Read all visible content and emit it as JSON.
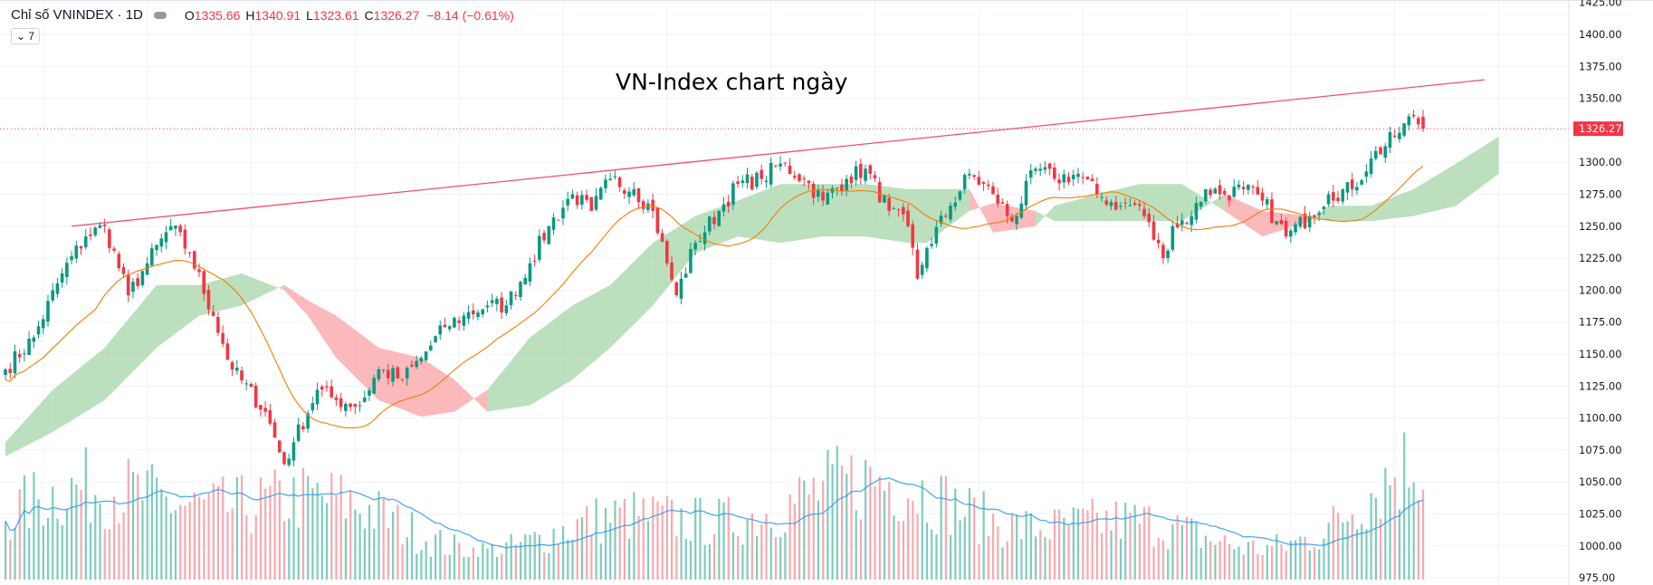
{
  "header": {
    "symbol": "Chỉ số VNINDEX · 1D",
    "open_label": "O",
    "open": "1335.66",
    "high_label": "H",
    "high": "1340.91",
    "low_label": "L",
    "low": "1323.61",
    "close_label": "C",
    "close": "1326.27",
    "change": "−8.14 (−0.61%)",
    "indicator_toggle": "⌄ 7"
  },
  "chart_data": {
    "type": "candlestick",
    "title": "VN-Index chart ngày",
    "ylim": [
      975,
      1425
    ],
    "y_ticks": [
      "1425.00",
      "1400.00",
      "1375.00",
      "1350.00",
      "1300.00",
      "1275.00",
      "1250.00",
      "1225.00",
      "1200.00",
      "1175.00",
      "1150.00",
      "1125.00",
      "1100.00",
      "1075.00",
      "1050.00",
      "1025.00",
      "1000.00",
      "975.00"
    ],
    "last_price_label": "1326.27",
    "last_price": 1326.27,
    "last_candle": {
      "open": 1335.66,
      "high": 1340.91,
      "low": 1323.61,
      "close": 1326.27
    },
    "close_trace_bar_price": [
      [
        0,
        1138
      ],
      [
        6,
        1163
      ],
      [
        12,
        1213
      ],
      [
        17,
        1242
      ],
      [
        21,
        1250
      ],
      [
        26,
        1196
      ],
      [
        30,
        1221
      ],
      [
        35,
        1250
      ],
      [
        39,
        1229
      ],
      [
        44,
        1180
      ],
      [
        48,
        1138
      ],
      [
        55,
        1105
      ],
      [
        59,
        1064
      ],
      [
        61,
        1081
      ],
      [
        66,
        1122
      ],
      [
        70,
        1114
      ],
      [
        75,
        1110
      ],
      [
        79,
        1138
      ],
      [
        84,
        1130
      ],
      [
        88,
        1147
      ],
      [
        93,
        1171
      ],
      [
        97,
        1180
      ],
      [
        102,
        1188
      ],
      [
        106,
        1188
      ],
      [
        111,
        1221
      ],
      [
        115,
        1250
      ],
      [
        120,
        1275
      ],
      [
        124,
        1262
      ],
      [
        128,
        1287
      ],
      [
        133,
        1279
      ],
      [
        137,
        1262
      ],
      [
        140,
        1221
      ],
      [
        142,
        1196
      ],
      [
        146,
        1237
      ],
      [
        151,
        1262
      ],
      [
        155,
        1283
      ],
      [
        160,
        1287
      ],
      [
        164,
        1299
      ],
      [
        169,
        1287
      ],
      [
        173,
        1270
      ],
      [
        178,
        1287
      ],
      [
        182,
        1295
      ],
      [
        187,
        1262
      ],
      [
        191,
        1250
      ],
      [
        193,
        1209
      ],
      [
        195,
        1233
      ],
      [
        200,
        1266
      ],
      [
        204,
        1291
      ],
      [
        209,
        1275
      ],
      [
        213,
        1254
      ],
      [
        218,
        1295
      ],
      [
        222,
        1287
      ],
      [
        227,
        1291
      ],
      [
        231,
        1275
      ],
      [
        236,
        1266
      ],
      [
        240,
        1266
      ],
      [
        245,
        1225
      ],
      [
        247,
        1250
      ],
      [
        251,
        1258
      ],
      [
        254,
        1279
      ],
      [
        258,
        1275
      ],
      [
        262,
        1279
      ],
      [
        266,
        1270
      ],
      [
        269,
        1254
      ],
      [
        271,
        1242
      ],
      [
        276,
        1258
      ],
      [
        280,
        1275
      ],
      [
        285,
        1279
      ],
      [
        289,
        1303
      ],
      [
        294,
        1320
      ],
      [
        298,
        1336
      ],
      [
        300,
        1326.27
      ]
    ],
    "ichimoku_cloud_bar_spanA_spanB": [
      [
        0,
        1081,
        1070
      ],
      [
        10,
        1122,
        1089
      ],
      [
        21,
        1155,
        1114
      ],
      [
        32,
        1204,
        1155
      ],
      [
        41,
        1204,
        1180
      ],
      [
        50,
        1213,
        1188
      ],
      [
        59,
        1200,
        1204
      ],
      [
        64,
        1180,
        1192
      ],
      [
        70,
        1147,
        1180
      ],
      [
        79,
        1114,
        1155
      ],
      [
        88,
        1101,
        1147
      ],
      [
        95,
        1105,
        1130
      ],
      [
        102,
        1122,
        1105
      ],
      [
        111,
        1163,
        1110
      ],
      [
        120,
        1188,
        1130
      ],
      [
        128,
        1204,
        1155
      ],
      [
        137,
        1237,
        1188
      ],
      [
        146,
        1258,
        1229
      ],
      [
        155,
        1270,
        1242
      ],
      [
        164,
        1283,
        1237
      ],
      [
        173,
        1283,
        1242
      ],
      [
        182,
        1283,
        1242
      ],
      [
        191,
        1279,
        1237
      ],
      [
        195,
        1279,
        1237
      ],
      [
        204,
        1279,
        1262
      ],
      [
        209,
        1245,
        1268
      ],
      [
        218,
        1250,
        1262
      ],
      [
        222,
        1266,
        1254
      ],
      [
        231,
        1275,
        1254
      ],
      [
        240,
        1283,
        1254
      ],
      [
        249,
        1283,
        1254
      ],
      [
        258,
        1262,
        1275
      ],
      [
        266,
        1242,
        1262
      ],
      [
        276,
        1254,
        1258
      ],
      [
        280,
        1266,
        1254
      ],
      [
        289,
        1266,
        1254
      ],
      [
        298,
        1279,
        1258
      ],
      [
        307,
        1299,
        1266
      ],
      [
        316,
        1320,
        1291
      ]
    ],
    "trendline_bar_price": [
      [
        14,
        1250
      ],
      [
        313,
        1364.5
      ]
    ],
    "moving_average_period": 20,
    "colors": {
      "up": "#089981",
      "down": "#f23645",
      "ma": "#f57c00",
      "cloud_bull": "#a5d6a7",
      "cloud_bear": "#faa1a4",
      "trendline": "#f0506e",
      "volume_ma": "#2196f3"
    },
    "grid": true
  }
}
